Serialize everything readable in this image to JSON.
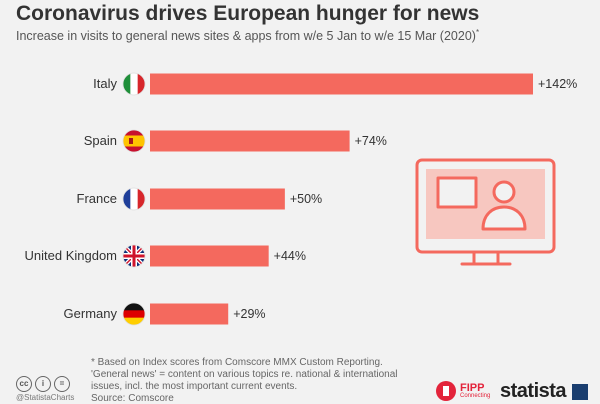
{
  "header": {
    "title": "Coronavirus drives European hunger for news",
    "subtitle": "Increase in visits to general news sites & apps from w/e 5 Jan to w/e 15 Mar (2020)",
    "subtitle_mark": "*"
  },
  "chart_data": {
    "type": "bar",
    "orientation": "horizontal",
    "categories": [
      "Italy",
      "Spain",
      "France",
      "United Kingdom",
      "Germany"
    ],
    "values": [
      142,
      74,
      50,
      44,
      29
    ],
    "value_labels": [
      "+142%",
      "+74%",
      "+50%",
      "+44%",
      "+29%"
    ],
    "flags": [
      "italy-flag-icon",
      "spain-flag-icon",
      "france-flag-icon",
      "uk-flag-icon",
      "germany-flag-icon"
    ],
    "bar_color": "#f4695e",
    "unit": "%",
    "xlim": [
      0,
      142
    ]
  },
  "footer": {
    "footnote_line1": "* Based on Index scores from Comscore MMX Custom Reporting.",
    "footnote_line2": "'General news' = content on various topics re. national & international",
    "footnote_line3": "issues, incl. the most important current events.",
    "source": "Source: Comscore",
    "handle": "@StatistaCharts",
    "fipp_logo": "FIPP",
    "fipp_sub": "Connecting",
    "statista_logo": "statista"
  },
  "icons": {
    "illustration": "monitor-with-presenter-icon",
    "cc": [
      "cc-icon",
      "person-icon",
      "equals-icon"
    ]
  },
  "colors": {
    "background": "#f2f2f2",
    "bar": "#f4695e",
    "illustration": "#f4695e",
    "text": "#333333"
  }
}
